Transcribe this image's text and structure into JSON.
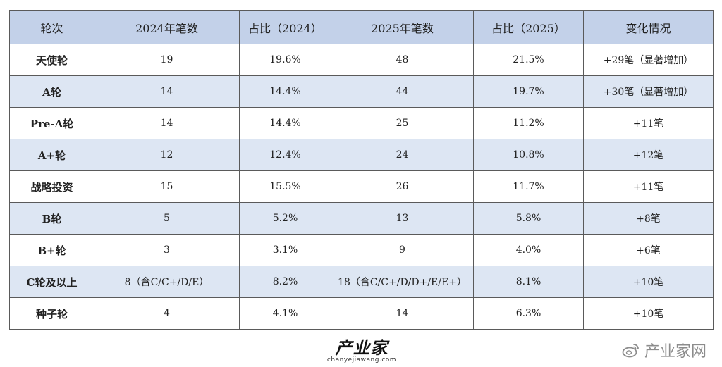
{
  "table": {
    "headers": [
      "轮次",
      "2024年笔数",
      "占比（2024）",
      "2025年笔数",
      "占比（2025）",
      "变化情况"
    ],
    "rows": [
      [
        "天使轮",
        "19",
        "19.6%",
        "48",
        "21.5%",
        "+29笔（显著增加）"
      ],
      [
        "A轮",
        "14",
        "14.4%",
        "44",
        "19.7%",
        "+30笔（显著增加）"
      ],
      [
        "Pre-A轮",
        "14",
        "14.4%",
        "25",
        "11.2%",
        "+11笔"
      ],
      [
        "A+轮",
        "12",
        "12.4%",
        "24",
        "10.8%",
        "+12笔"
      ],
      [
        "战略投资",
        "15",
        "15.5%",
        "26",
        "11.7%",
        "+11笔"
      ],
      [
        "B轮",
        "5",
        "5.2%",
        "13",
        "5.8%",
        "+8笔"
      ],
      [
        "B+轮",
        "3",
        "3.1%",
        "9",
        "4.0%",
        "+6笔"
      ],
      [
        "C轮及以上",
        "8（含C/C+/D/E）",
        "8.2%",
        "18（含C/C+/D/D+/E/E+）",
        "8.1%",
        "+10笔"
      ],
      [
        "种子轮",
        "4",
        "4.1%",
        "14",
        "6.3%",
        "+10笔"
      ]
    ]
  },
  "footer": {
    "logo_main": "产业家",
    "logo_sub": "chanyejiawang.com"
  },
  "watermark": {
    "icon": "weibo-icon",
    "text": "产业家网"
  },
  "colors": {
    "header_bg": "#c3d1e9",
    "stripe_bg": "#dde6f3",
    "border": "#5a5a5a"
  }
}
